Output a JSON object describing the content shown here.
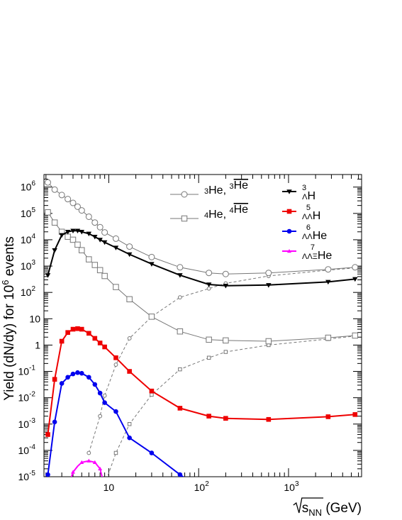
{
  "chart_data": {
    "type": "line",
    "xscale": "log",
    "yscale": "log",
    "xlim": [
      1.9,
      6500
    ],
    "ylim": [
      1e-05,
      3000000.0
    ],
    "xlabel": {
      "base": "s",
      "sub": "NN",
      "suffix": " (GeV)"
    },
    "ylabel": {
      "main": "Yield (dN/dy) for 10",
      "sup": "6",
      "suffix": " events"
    },
    "x_ticks": [
      {
        "v": 10,
        "label": "10",
        "sup": ""
      },
      {
        "v": 100,
        "label": "10",
        "sup": "2"
      },
      {
        "v": 1000,
        "label": "10",
        "sup": "3"
      }
    ],
    "y_ticks": [
      {
        "v": 1000000.0,
        "label": "10",
        "sup": "6"
      },
      {
        "v": 100000.0,
        "label": "10",
        "sup": "5"
      },
      {
        "v": 10000.0,
        "label": "10",
        "sup": "4"
      },
      {
        "v": 1000.0,
        "label": "10",
        "sup": "3"
      },
      {
        "v": 100.0,
        "label": "10",
        "sup": "2"
      },
      {
        "v": 10,
        "label": "10",
        "sup": ""
      },
      {
        "v": 1,
        "label": "1",
        "sup": ""
      },
      {
        "v": 0.1,
        "label": "10",
        "sup": "-1"
      },
      {
        "v": 0.01,
        "label": "10",
        "sup": "-2"
      },
      {
        "v": 0.001,
        "label": "10",
        "sup": "-3"
      },
      {
        "v": 0.0001,
        "label": "10",
        "sup": "-4"
      },
      {
        "v": 1e-05,
        "label": "10",
        "sup": "-5"
      }
    ],
    "series": [
      {
        "id": "he3",
        "color": "#777777",
        "marker": "open-circle",
        "line": "solid",
        "lw": 1,
        "ms": 10,
        "x": [
          2.1,
          2.5,
          3.0,
          3.5,
          4.0,
          4.5,
          5.0,
          6.0,
          7.0,
          8.0,
          9.0,
          12.0,
          17.0,
          30.0,
          62.0,
          130.0,
          200.0,
          600.0,
          2760.0,
          5500.0
        ],
        "y": [
          1500000.0,
          800000.0,
          500000.0,
          350000.0,
          250000.0,
          180000.0,
          130000.0,
          75000.0,
          45000.0,
          30000.0,
          19000.0,
          11000.0,
          5500.0,
          2200.0,
          900,
          550,
          500,
          550,
          750,
          900
        ]
      },
      {
        "id": "he3bar",
        "color": "#777777",
        "marker": "open-circle",
        "line": "dashed",
        "lw": 1,
        "ms": 6,
        "x": [
          6.0,
          8.0,
          9.0,
          12.0,
          17.0,
          30.0,
          62.0,
          130.0,
          200.0,
          600.0,
          2760.0,
          5500.0
        ],
        "y": [
          8e-05,
          0.002,
          0.012,
          0.18,
          1.8,
          12.0,
          65.0,
          140.0,
          220.0,
          420.0,
          700.0,
          850.0
        ]
      },
      {
        "id": "he4",
        "color": "#777777",
        "marker": "open-square",
        "line": "solid",
        "lw": 1,
        "ms": 10,
        "x": [
          2.1,
          2.5,
          3.0,
          3.5,
          4.0,
          4.5,
          5.0,
          6.0,
          7.0,
          8.0,
          9.0,
          12.0,
          17.0,
          30.0,
          62.0,
          130.0,
          200.0,
          600.0,
          2760.0,
          5500.0
        ],
        "y": [
          110000.0,
          45000.0,
          20000.0,
          13000.0,
          10000.0,
          6500.0,
          4000.0,
          1800.0,
          1100.0,
          700,
          420,
          160,
          55,
          12,
          3.3,
          1.6,
          1.5,
          1.4,
          1.9,
          2.3
        ]
      },
      {
        "id": "he4bar",
        "color": "#777777",
        "marker": "open-square",
        "line": "dashed",
        "lw": 1,
        "ms": 6,
        "x": [
          9.0,
          12.0,
          17.0,
          30.0,
          62.0,
          130.0,
          200.0,
          600.0,
          2760.0,
          5500.0
        ],
        "y": [
          5e-06,
          8e-05,
          0.001,
          0.013,
          0.12,
          0.33,
          0.55,
          1.0,
          1.7,
          2.2
        ]
      },
      {
        "id": "h3l",
        "color": "#000000",
        "marker": "down-triangle",
        "line": "solid",
        "lw": 2,
        "ms": 10,
        "x": [
          2.1,
          2.5,
          3.0,
          3.5,
          4.0,
          4.5,
          5.0,
          6.0,
          7.0,
          8.0,
          9.0,
          12.0,
          17.0,
          30.0,
          62.0,
          130.0,
          200.0,
          600.0,
          2760.0,
          5500.0
        ],
        "y": [
          450,
          4000,
          15000.0,
          20000.0,
          22000.0,
          22000.0,
          20000.0,
          17000.0,
          13000.0,
          10000.0,
          8000.0,
          5000.0,
          2800.0,
          1200.0,
          450,
          200,
          180,
          190,
          250,
          320
        ]
      },
      {
        "id": "h5ll",
        "color": "#ee0000",
        "marker": "square",
        "line": "solid",
        "lw": 2,
        "ms": 8,
        "x": [
          2.1,
          2.5,
          3.0,
          3.5,
          4.0,
          4.5,
          5.0,
          6.0,
          7.0,
          8.0,
          9.0,
          12.0,
          17.0,
          30.0,
          62.0,
          130.0,
          200.0,
          600.0,
          2760.0,
          5500.0
        ],
        "y": [
          0.0004,
          0.05,
          1.4,
          3.0,
          4.0,
          4.2,
          4.0,
          2.8,
          1.8,
          1.2,
          0.85,
          0.33,
          0.1,
          0.018,
          0.004,
          0.002,
          0.00165,
          0.0015,
          0.0019,
          0.0023
        ]
      },
      {
        "id": "he6ll",
        "color": "#0000ee",
        "marker": "circle",
        "line": "solid",
        "lw": 2,
        "ms": 8,
        "x": [
          2.1,
          2.5,
          3.0,
          3.5,
          4.0,
          4.5,
          5.0,
          6.0,
          7.0,
          8.0,
          9.0,
          12.0,
          17.0,
          30.0,
          62.0,
          100.0
        ],
        "y": [
          1.2e-05,
          0.0012,
          0.035,
          0.06,
          0.08,
          0.09,
          0.085,
          0.06,
          0.032,
          0.015,
          0.0065,
          0.003,
          0.0003,
          8e-05,
          1.2e-05,
          4e-06
        ]
      },
      {
        "id": "he7llxi",
        "color": "#ff00ff",
        "marker": "up-triangle",
        "line": "solid",
        "lw": 2,
        "ms": 8,
        "x": [
          3.3,
          4.0,
          4.5,
          5.0,
          6.0,
          7.0,
          8.0,
          9.5
        ],
        "y": [
          2e-06,
          1.5e-05,
          2.5e-05,
          3.5e-05,
          4e-05,
          3.5e-05,
          2e-05,
          2e-06
        ],
        "markers_x": [
          4.0,
          5.0,
          6.0,
          7.0,
          8.0
        ]
      }
    ],
    "legend": [
      {
        "id": "leg-he3",
        "series": "he3",
        "parts": [
          {
            "sup": "3"
          },
          {
            "t": "He, "
          },
          {
            "sup": "3"
          },
          {
            "t": "He",
            "over": true
          }
        ]
      },
      {
        "id": "leg-he4",
        "series": "he4",
        "parts": [
          {
            "sup": "4"
          },
          {
            "t": "He, "
          },
          {
            "sup": "4"
          },
          {
            "t": "He",
            "over": true
          }
        ]
      },
      {
        "id": "leg-h3l",
        "series": "h3l",
        "parts": [
          {
            "stack": [
              "3",
              "Λ"
            ]
          },
          {
            "t": "H"
          }
        ]
      },
      {
        "id": "leg-h5ll",
        "series": "h5ll",
        "parts": [
          {
            "stack": [
              "5",
              "ΛΛ"
            ]
          },
          {
            "t": "H"
          }
        ]
      },
      {
        "id": "leg-he6ll",
        "series": "he6ll",
        "parts": [
          {
            "stack": [
              "6",
              "ΛΛ"
            ]
          },
          {
            "t": "He"
          }
        ]
      },
      {
        "id": "leg-he7llxi",
        "series": "he7llxi",
        "parts": [
          {
            "stack": [
              "7",
              "ΛΛΞ"
            ]
          },
          {
            "t": "He"
          }
        ]
      }
    ]
  }
}
